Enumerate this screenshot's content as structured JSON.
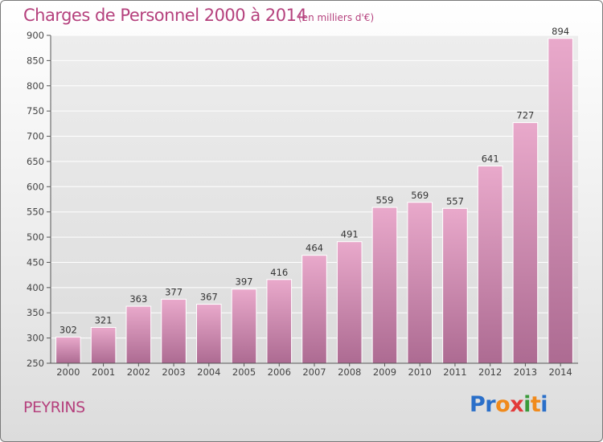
{
  "chart_data": {
    "type": "bar",
    "title": "Charges de Personnel 2000 à 2014",
    "subtitle": "(en milliers d'€)",
    "categories": [
      "2000",
      "2001",
      "2002",
      "2003",
      "2004",
      "2005",
      "2006",
      "2007",
      "2008",
      "2009",
      "2010",
      "2011",
      "2012",
      "2013",
      "2014"
    ],
    "values": [
      302,
      321,
      363,
      377,
      367,
      397,
      416,
      464,
      491,
      559,
      569,
      557,
      641,
      727,
      894
    ],
    "ylim": [
      250,
      900
    ],
    "yticks": [
      250,
      300,
      350,
      400,
      450,
      500,
      550,
      600,
      650,
      700,
      750,
      800,
      850,
      900
    ],
    "xlabel": "",
    "ylabel": "",
    "grid": true,
    "bar_color": "#d68bb3"
  },
  "commune": "PEYRINS",
  "logo": {
    "letters": [
      "P",
      "r",
      "o",
      "x",
      "i",
      "t",
      "i"
    ],
    "colors": [
      "#2a6fc9",
      "#2a6fc9",
      "#f08a1c",
      "#e23a3a",
      "#3a9a3a",
      "#f08a1c",
      "#2a6fc9"
    ]
  }
}
